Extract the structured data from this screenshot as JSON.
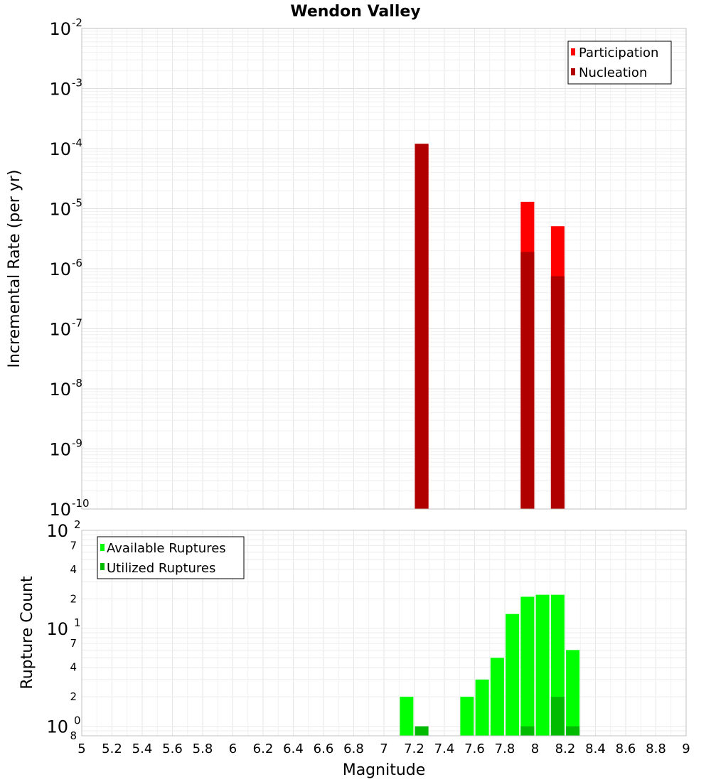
{
  "chart_data": [
    {
      "type": "bar",
      "title": "Wendon Valley",
      "ylabel": "Incremental Rate (per yr)",
      "yscale": "log",
      "ylim": [
        1e-10,
        0.01
      ],
      "ytick_exponents": [
        "-10",
        "-9",
        "-8",
        "-7",
        "-6",
        "-5",
        "-4",
        "-3",
        "-2"
      ],
      "ytick_base": "10",
      "grid": true,
      "legend": {
        "placement": "top-right",
        "entries": [
          "Participation",
          "Nucleation"
        ]
      },
      "series": [
        {
          "name": "Participation",
          "color": "#ff0000",
          "x": [
            7.25,
            7.95,
            8.15
          ],
          "values": [
            0.00012,
            1.3e-05,
            5.1e-06
          ]
        },
        {
          "name": "Nucleation",
          "color": "#b00000",
          "x": [
            7.25,
            7.95,
            8.15
          ],
          "values": [
            0.00012,
            1.9e-06,
            7.5e-07
          ]
        }
      ]
    },
    {
      "type": "bar",
      "ylabel": "Rupture Count",
      "yscale": "log",
      "ylim": [
        0.8,
        100
      ],
      "major_ticks": [
        {
          "value": 1,
          "base": "10",
          "exp": "0"
        },
        {
          "value": 10,
          "base": "10",
          "exp": "1"
        },
        {
          "value": 100,
          "base": "10",
          "exp": "2"
        }
      ],
      "minor_ticks": [
        {
          "value": 0.8,
          "label": "8"
        },
        {
          "value": 2,
          "label": "2"
        },
        {
          "value": 4,
          "label": "4"
        },
        {
          "value": 7,
          "label": "7"
        },
        {
          "value": 20,
          "label": "2"
        },
        {
          "value": 40,
          "label": "4"
        },
        {
          "value": 70,
          "label": "7"
        }
      ],
      "grid": true,
      "legend": {
        "placement": "top-left",
        "entries": [
          "Available Ruptures",
          "Utilized Ruptures"
        ]
      },
      "series": [
        {
          "name": "Available Ruptures",
          "color": "#00ff00",
          "x": [
            7.15,
            7.55,
            7.65,
            7.75,
            7.85,
            7.95,
            8.05,
            8.15,
            8.25
          ],
          "values": [
            2,
            2,
            3,
            5,
            14,
            21,
            22,
            22,
            6
          ]
        },
        {
          "name": "Utilized Ruptures",
          "color": "#00bb00",
          "x": [
            7.25,
            7.95,
            8.15,
            8.25
          ],
          "values": [
            1,
            1,
            2,
            1
          ]
        }
      ],
      "xlabel": "Magnitude",
      "xlim": [
        5,
        9
      ],
      "xtick_labels": [
        "5",
        "5.2",
        "5.4",
        "5.6",
        "5.8",
        "6",
        "6.2",
        "6.4",
        "6.6",
        "6.8",
        "7",
        "7.2",
        "7.4",
        "7.6",
        "7.8",
        "8",
        "8.2",
        "8.4",
        "8.6",
        "8.8",
        "9"
      ]
    }
  ]
}
